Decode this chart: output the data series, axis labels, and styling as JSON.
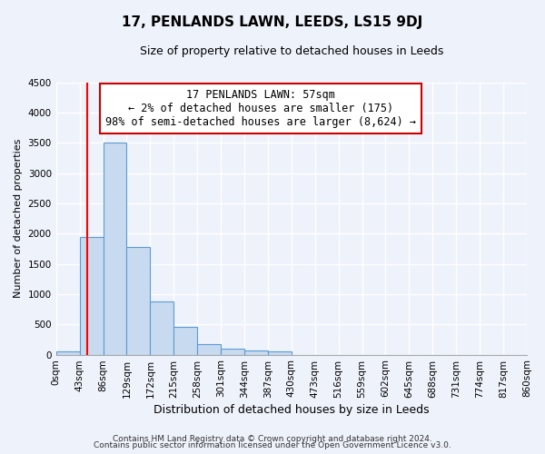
{
  "title": "17, PENLANDS LAWN, LEEDS, LS15 9DJ",
  "subtitle": "Size of property relative to detached houses in Leeds",
  "xlabel": "Distribution of detached houses by size in Leeds",
  "ylabel": "Number of detached properties",
  "footer_line1": "Contains HM Land Registry data © Crown copyright and database right 2024.",
  "footer_line2": "Contains public sector information licensed under the Open Government Licence v3.0.",
  "annotation_line1": "17 PENLANDS LAWN: 57sqm",
  "annotation_line2": "← 2% of detached houses are smaller (175)",
  "annotation_line3": "98% of semi-detached houses are larger (8,624) →",
  "bin_edges": [
    0,
    43,
    86,
    129,
    172,
    215,
    258,
    301,
    344,
    387,
    430,
    473,
    516,
    559,
    602,
    645,
    688,
    731,
    774,
    817,
    860
  ],
  "bin_labels": [
    "0sqm",
    "43sqm",
    "86sqm",
    "129sqm",
    "172sqm",
    "215sqm",
    "258sqm",
    "301sqm",
    "344sqm",
    "387sqm",
    "430sqm",
    "473sqm",
    "516sqm",
    "559sqm",
    "602sqm",
    "645sqm",
    "688sqm",
    "731sqm",
    "774sqm",
    "817sqm",
    "860sqm"
  ],
  "counts": [
    50,
    1950,
    3500,
    1775,
    875,
    460,
    175,
    100,
    65,
    50,
    0,
    0,
    0,
    0,
    0,
    0,
    0,
    0,
    0,
    0
  ],
  "ylim": [
    0,
    4500
  ],
  "yticks": [
    0,
    500,
    1000,
    1500,
    2000,
    2500,
    3000,
    3500,
    4000,
    4500
  ],
  "bar_color": "#c8daef",
  "bar_edge_color": "#5a9bd5",
  "red_line_x": 57,
  "background_color": "#eef2fb",
  "annotation_box_facecolor": "#ffffff",
  "annotation_box_edge": "#cc0000",
  "grid_color": "#ffffff",
  "title_fontsize": 11,
  "subtitle_fontsize": 9,
  "ylabel_fontsize": 8,
  "xlabel_fontsize": 9,
  "tick_fontsize": 7.5,
  "footer_fontsize": 6.5
}
